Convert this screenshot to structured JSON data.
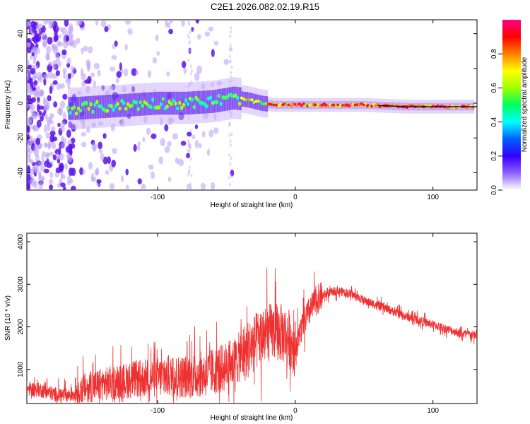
{
  "page": {
    "title": "C2E1.2026.082.02.19.R15"
  },
  "chart_data": [
    {
      "type": "heatmap",
      "title": "C2E1.2026.082.02.19.R15",
      "xlabel": "Height of straight line (km)",
      "ylabel": "Frequency (Hz)",
      "xlim": [
        -195,
        132
      ],
      "ylim": [
        -50,
        48
      ],
      "xticks": [
        -100,
        0,
        100
      ],
      "xtick_labels": [
        "-100",
        "0",
        "100"
      ],
      "yticks": [
        -40,
        -20,
        0,
        20,
        40
      ],
      "ytick_labels": [
        "-40",
        "-20",
        "0",
        "20",
        "40"
      ],
      "colorbar": {
        "label": "Normalized spectral amplitude",
        "range": [
          0,
          1
        ],
        "ticks": [
          0.0,
          0.2,
          0.4,
          0.6,
          0.8
        ],
        "tick_labels": [
          "0.0",
          "0.2",
          "0.4",
          "0.6",
          "0.8"
        ],
        "colors": [
          "#ffffff",
          "#9060ff",
          "#3000ff",
          "#0060ff",
          "#00ffff",
          "#00ff60",
          "#a0ff00",
          "#ffff00",
          "#ff8000",
          "#ff0000",
          "#ff0080"
        ]
      },
      "ridge": {
        "x": [
          -160,
          -140,
          -120,
          -100,
          -80,
          -60,
          -45,
          -35,
          -25,
          -15,
          0,
          20,
          50,
          80,
          110,
          130
        ],
        "y": [
          -3,
          -2,
          -1,
          0,
          0,
          1,
          3,
          2,
          0,
          -1,
          -1,
          -1,
          -1,
          -2,
          -2,
          -2
        ]
      }
    },
    {
      "type": "line",
      "xlabel": "Height of straight line (km)",
      "ylabel": "SNR (10 * v/v)",
      "xlim": [
        -195,
        132
      ],
      "ylim": [
        200,
        4200
      ],
      "xticks": [
        -100,
        0,
        100
      ],
      "xtick_labels": [
        "-100",
        "0",
        "100"
      ],
      "yticks": [
        1000,
        2000,
        3000,
        4000
      ],
      "ytick_labels": [
        "1000",
        "2000",
        "3000",
        "4000"
      ],
      "color": "#ee3030",
      "series": [
        {
          "name": "SNR",
          "x": [
            -195,
            -185,
            -175,
            -165,
            -155,
            -145,
            -135,
            -125,
            -115,
            -105,
            -95,
            -85,
            -75,
            -65,
            -55,
            -45,
            -40,
            -35,
            -30,
            -25,
            -20,
            -15,
            -10,
            -5,
            0,
            5,
            10,
            15,
            20,
            25,
            30,
            35,
            40,
            45,
            50,
            60,
            70,
            80,
            90,
            100,
            110,
            120,
            132
          ],
          "values": [
            550,
            520,
            420,
            380,
            550,
            620,
            680,
            720,
            780,
            800,
            820,
            830,
            850,
            900,
            1000,
            1150,
            1300,
            1450,
            1600,
            1750,
            1850,
            1900,
            1850,
            1750,
            1500,
            2000,
            2350,
            2600,
            2750,
            2800,
            2850,
            2820,
            2780,
            2700,
            2620,
            2500,
            2380,
            2250,
            2150,
            2050,
            1950,
            1850,
            1800
          ]
        }
      ]
    }
  ]
}
